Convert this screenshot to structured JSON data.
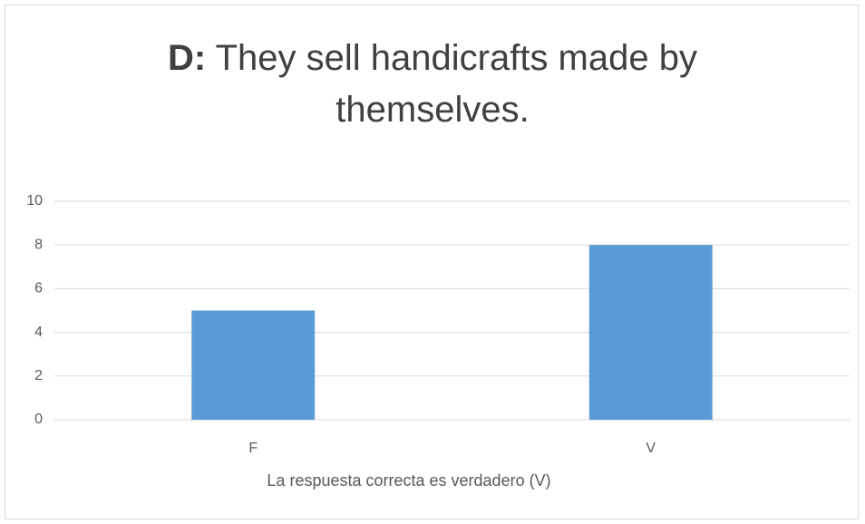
{
  "chart_data": {
    "type": "bar",
    "title_label": "D:",
    "title": "They sell handicrafts made by themselves.",
    "x_label": "La respuesta correcta es verdadero (V)",
    "categories": [
      "F",
      "V"
    ],
    "values": [
      5,
      8
    ],
    "color": "#5b9bd5",
    "ylim": [
      0,
      10
    ],
    "yticks": [
      0,
      2,
      4,
      6,
      8,
      10
    ],
    "grid": true
  }
}
